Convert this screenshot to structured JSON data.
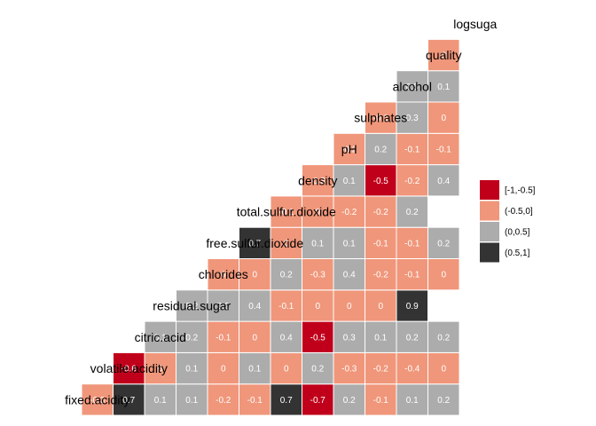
{
  "chart_data": {
    "type": "heatmap",
    "variables": [
      "fixed.acidity",
      "volatile.acidity",
      "citric.acid",
      "residual.sugar",
      "chlorides",
      "free.sulfur.dioxide",
      "total.sulfur.dioxide",
      "density",
      "pH",
      "sulphates",
      "alcohol",
      "quality",
      "logsugar"
    ],
    "diagonal_labels": [
      "fixed.acidity",
      "volatile.acidity",
      "citric.acid",
      "residual.sugar",
      "chlorides",
      "free.sulfur.dioxide",
      "total.sulfur.dioxide",
      "density",
      "pH",
      "sulphates",
      "alcohol",
      "quality",
      "logsuga"
    ],
    "cells": [
      {
        "row": 0,
        "col": 0,
        "value": -0.3
      },
      {
        "row": 0,
        "col": 1,
        "value": 0.7
      },
      {
        "row": 0,
        "col": 2,
        "value": 0.1
      },
      {
        "row": 0,
        "col": 3,
        "value": 0.1
      },
      {
        "row": 0,
        "col": 4,
        "value": -0.2
      },
      {
        "row": 0,
        "col": 5,
        "value": -0.1
      },
      {
        "row": 0,
        "col": 6,
        "value": 0.7
      },
      {
        "row": 0,
        "col": 7,
        "value": -0.7
      },
      {
        "row": 0,
        "col": 8,
        "value": 0.2
      },
      {
        "row": 0,
        "col": 9,
        "value": -0.1
      },
      {
        "row": 0,
        "col": 10,
        "value": 0.1
      },
      {
        "row": 0,
        "col": 11,
        "value": 0.2
      },
      {
        "row": 1,
        "col": 1,
        "value": -0.6
      },
      {
        "row": 1,
        "col": 2,
        "value": 0
      },
      {
        "row": 1,
        "col": 3,
        "value": 0.1
      },
      {
        "row": 1,
        "col": 4,
        "value": 0
      },
      {
        "row": 1,
        "col": 5,
        "value": 0.1
      },
      {
        "row": 1,
        "col": 6,
        "value": 0
      },
      {
        "row": 1,
        "col": 7,
        "value": 0.2
      },
      {
        "row": 1,
        "col": 8,
        "value": -0.3
      },
      {
        "row": 1,
        "col": 9,
        "value": -0.2
      },
      {
        "row": 1,
        "col": 10,
        "value": -0.4
      },
      {
        "row": 1,
        "col": 11,
        "value": 0
      },
      {
        "row": 2,
        "col": 2,
        "value": 0.1
      },
      {
        "row": 2,
        "col": 3,
        "value": 0.2
      },
      {
        "row": 2,
        "col": 4,
        "value": -0.1
      },
      {
        "row": 2,
        "col": 5,
        "value": 0
      },
      {
        "row": 2,
        "col": 6,
        "value": 0.4
      },
      {
        "row": 2,
        "col": 7,
        "value": -0.5
      },
      {
        "row": 2,
        "col": 8,
        "value": 0.3
      },
      {
        "row": 2,
        "col": 9,
        "value": 0.1
      },
      {
        "row": 2,
        "col": 10,
        "value": 0.2
      },
      {
        "row": 2,
        "col": 11,
        "value": 0.2
      },
      {
        "row": 3,
        "col": 3,
        "value": 0.2
      },
      {
        "row": 3,
        "col": 4,
        "value": 0.2
      },
      {
        "row": 3,
        "col": 5,
        "value": 0.4
      },
      {
        "row": 3,
        "col": 6,
        "value": -0.1
      },
      {
        "row": 3,
        "col": 7,
        "value": 0
      },
      {
        "row": 3,
        "col": 8,
        "value": 0
      },
      {
        "row": 3,
        "col": 9,
        "value": 0
      },
      {
        "row": 3,
        "col": 10,
        "value": 0.9
      },
      {
        "row": 4,
        "col": 4,
        "value": 0
      },
      {
        "row": 4,
        "col": 5,
        "value": 0
      },
      {
        "row": 4,
        "col": 6,
        "value": 0.2
      },
      {
        "row": 4,
        "col": 7,
        "value": -0.3
      },
      {
        "row": 4,
        "col": 8,
        "value": 0.4
      },
      {
        "row": 4,
        "col": 9,
        "value": -0.2
      },
      {
        "row": 4,
        "col": 10,
        "value": -0.1
      },
      {
        "row": 4,
        "col": 11,
        "value": 0
      },
      {
        "row": 5,
        "col": 5,
        "value": 0.7
      },
      {
        "row": 5,
        "col": 6,
        "value": 0
      },
      {
        "row": 5,
        "col": 7,
        "value": 0.1
      },
      {
        "row": 5,
        "col": 8,
        "value": 0.1
      },
      {
        "row": 5,
        "col": 9,
        "value": -0.1
      },
      {
        "row": 5,
        "col": 10,
        "value": -0.1
      },
      {
        "row": 5,
        "col": 11,
        "value": 0.2
      },
      {
        "row": 6,
        "col": 6,
        "value": -0.1
      },
      {
        "row": 6,
        "col": 7,
        "value": 0
      },
      {
        "row": 6,
        "col": 8,
        "value": -0.2
      },
      {
        "row": 6,
        "col": 9,
        "value": -0.2
      },
      {
        "row": 6,
        "col": 10,
        "value": 0.2
      },
      {
        "row": 7,
        "col": 7,
        "value": -0.3
      },
      {
        "row": 7,
        "col": 8,
        "value": 0.1
      },
      {
        "row": 7,
        "col": 9,
        "value": -0.5
      },
      {
        "row": 7,
        "col": 10,
        "value": -0.2
      },
      {
        "row": 7,
        "col": 11,
        "value": 0.4
      },
      {
        "row": 8,
        "col": 8,
        "value": -0.2
      },
      {
        "row": 8,
        "col": 9,
        "value": 0.2
      },
      {
        "row": 8,
        "col": 10,
        "value": -0.1
      },
      {
        "row": 8,
        "col": 11,
        "value": -0.1
      },
      {
        "row": 9,
        "col": 9,
        "value": -0.1
      },
      {
        "row": 9,
        "col": 10,
        "value": 0.3
      },
      {
        "row": 9,
        "col": 11,
        "value": 0
      },
      {
        "row": 10,
        "col": 10,
        "value": 0.5
      },
      {
        "row": 10,
        "col": 11,
        "value": 0.1
      },
      {
        "row": 11,
        "col": 11,
        "value": 0
      }
    ],
    "legend": [
      {
        "label": "[-1,-0.5]",
        "color": "#c0001b"
      },
      {
        "label": "(-0.5,0]",
        "color": "#f0967a"
      },
      {
        "label": "(0,0.5]",
        "color": "#acacac"
      },
      {
        "label": "(0.5,1]",
        "color": "#333333"
      }
    ]
  }
}
